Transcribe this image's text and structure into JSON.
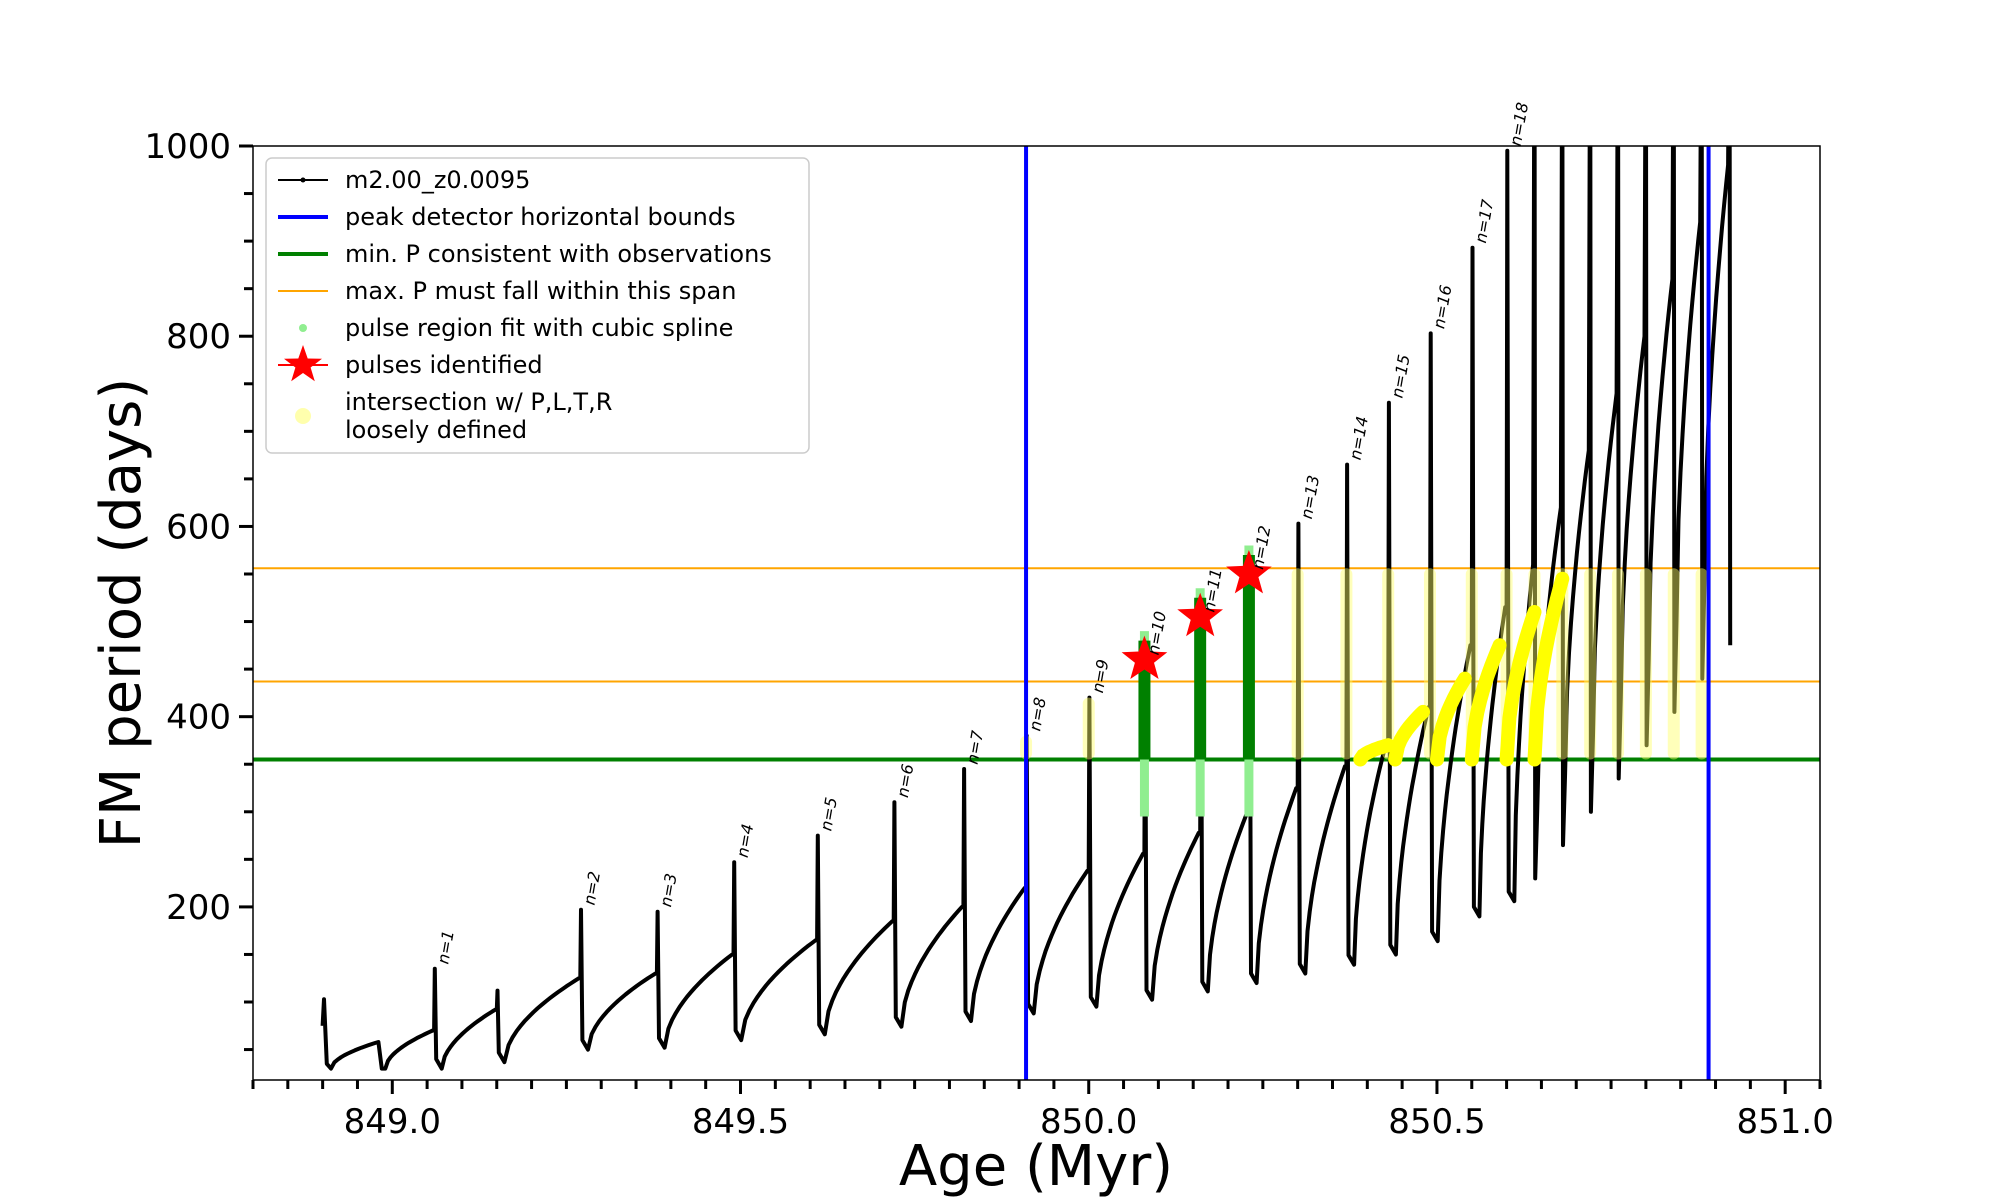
{
  "chart_data": {
    "type": "line",
    "title": "",
    "xlabel": "Age (Myr)",
    "ylabel": "FM period (days)",
    "xlim": [
      848.8,
      851.05
    ],
    "ylim": [
      18,
      1000
    ],
    "xticks_major": [
      "849.0",
      "849.5",
      "850.0",
      "850.5",
      "851.0"
    ],
    "xticks_major_values": [
      849.0,
      849.5,
      850.0,
      850.5,
      851.0
    ],
    "yticks_major": [
      "200",
      "400",
      "600",
      "800",
      "1000"
    ],
    "yticks_major_values": [
      200,
      400,
      600,
      800,
      1000
    ],
    "grid": false,
    "legend_position": "top-left",
    "legend": [
      {
        "label": "m2.00_z0.0095",
        "color": "#000000",
        "marker": "line-dot"
      },
      {
        "label": "peak detector horizontal bounds",
        "color": "#0000ff",
        "marker": "line"
      },
      {
        "label": "min. P consistent with observations",
        "color": "#008000",
        "marker": "line"
      },
      {
        "label": "max. P must fall within this span",
        "color": "#ffa500",
        "marker": "line"
      },
      {
        "label": "pulse region fit with cubic spline",
        "color": "#90ee90",
        "marker": "dot"
      },
      {
        "label": "pulses identified",
        "color": "#ff0000",
        "marker": "star"
      },
      {
        "label": "intersection w/ P,L,T,R\nloosely defined",
        "color": "#ffff99",
        "marker": "circle"
      }
    ],
    "vertical_bounds": [
      849.91,
      850.89
    ],
    "min_period_line": 355,
    "max_period_span": [
      437,
      556
    ],
    "pulses": [
      {
        "label": "n=1",
        "age": 849.06,
        "peak": 135,
        "floor": 70
      },
      {
        "label": "n=2",
        "age": 849.27,
        "peak": 197,
        "floor": 125
      },
      {
        "label": "n=3",
        "age": 849.38,
        "peak": 195,
        "floor": 130
      },
      {
        "label": "n=4",
        "age": 849.49,
        "peak": 247,
        "floor": 150
      },
      {
        "label": "n=5",
        "age": 849.61,
        "peak": 275,
        "floor": 165
      },
      {
        "label": "n=6",
        "age": 849.72,
        "peak": 310,
        "floor": 185
      },
      {
        "label": "n=7",
        "age": 849.82,
        "peak": 345,
        "floor": 200
      },
      {
        "label": "n=8",
        "age": 849.91,
        "peak": 380,
        "floor": 220
      },
      {
        "label": "n=9",
        "age": 850.0,
        "peak": 420,
        "floor": 238
      },
      {
        "label": "n=10",
        "age": 850.08,
        "peak": 460,
        "floor": 256
      },
      {
        "label": "n=11",
        "age": 850.16,
        "peak": 505,
        "floor": 278
      },
      {
        "label": "n=12",
        "age": 850.23,
        "peak": 550,
        "floor": 300
      },
      {
        "label": "n=13",
        "age": 850.3,
        "peak": 603,
        "floor": 325
      },
      {
        "label": "n=14",
        "age": 850.37,
        "peak": 665,
        "floor": 348
      },
      {
        "label": "n=15",
        "age": 850.43,
        "peak": 730,
        "floor": 375
      },
      {
        "label": "n=16",
        "age": 850.49,
        "peak": 803,
        "floor": 410
      },
      {
        "label": "n=17",
        "age": 850.55,
        "peak": 893,
        "floor": 475
      },
      {
        "label": "n=18",
        "age": 850.6,
        "peak": 995,
        "floor": 515
      }
    ],
    "late_pulses": [
      850.64,
      850.68,
      850.72,
      850.76,
      850.8,
      850.84,
      850.88,
      850.92
    ],
    "pulses_identified": [
      {
        "age": 850.08,
        "period": 460
      },
      {
        "age": 850.16,
        "period": 505
      },
      {
        "age": 850.23,
        "period": 550
      }
    ],
    "initial_segment": {
      "start": 848.9,
      "start_peak": 103,
      "first_min": 30,
      "start_period": 75
    }
  }
}
